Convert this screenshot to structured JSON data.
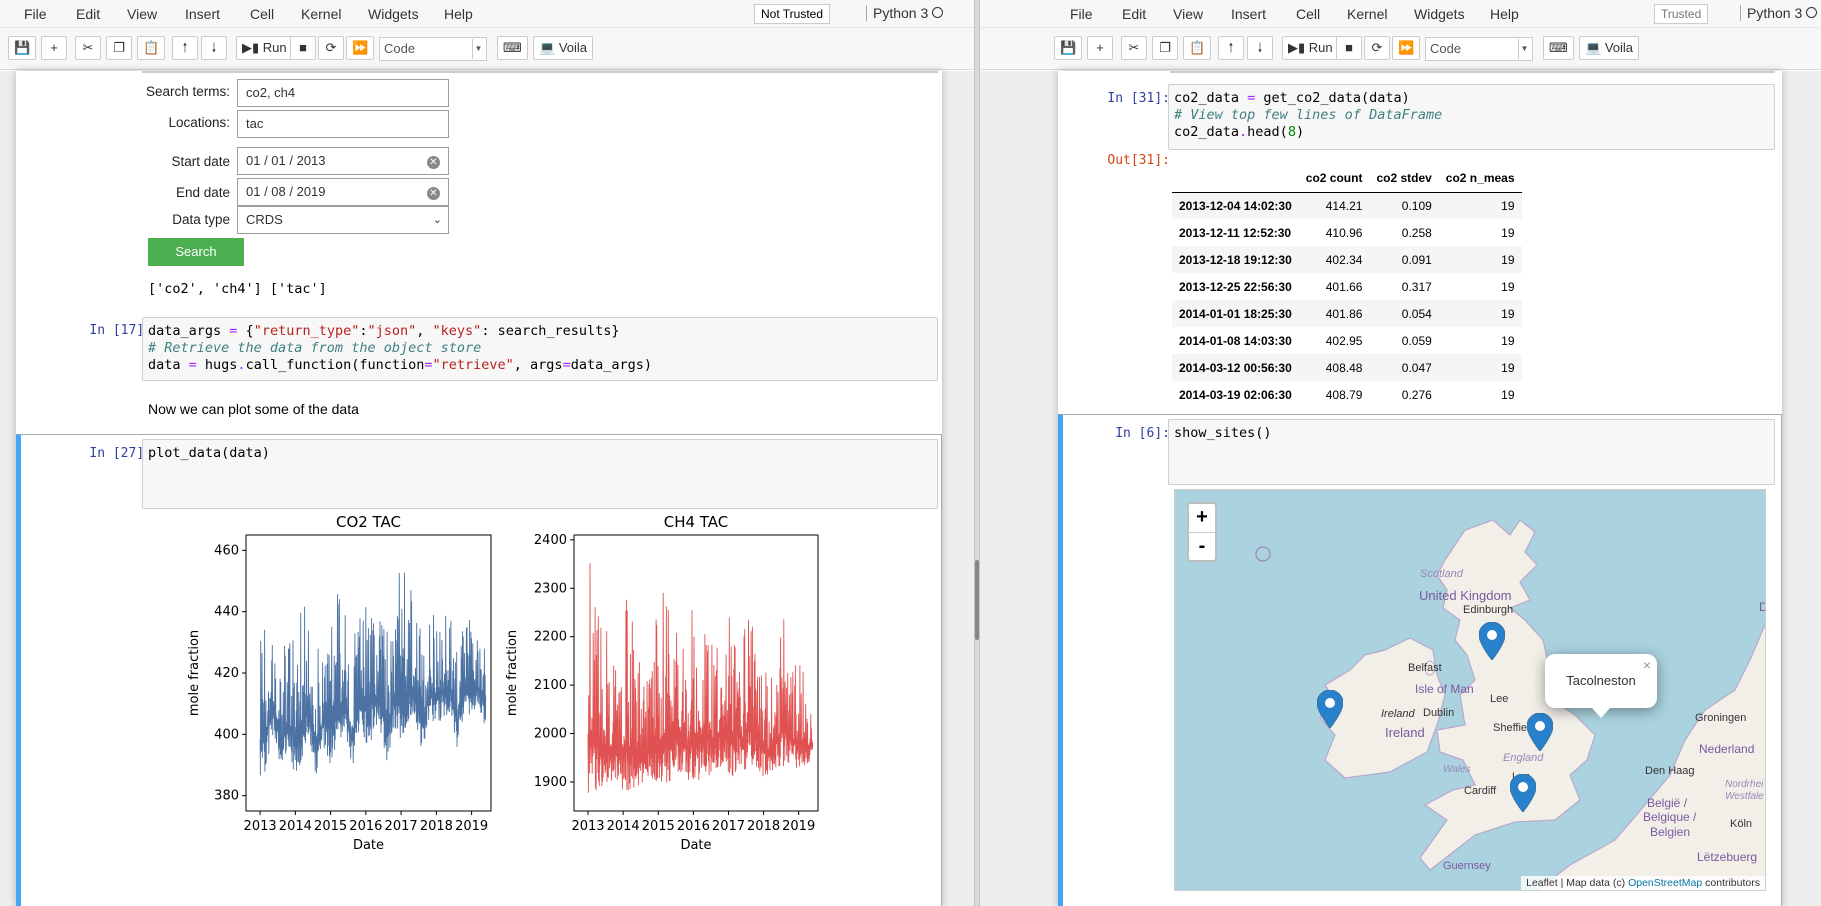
{
  "menus": [
    "File",
    "Edit",
    "View",
    "Insert",
    "Cell",
    "Kernel",
    "Widgets",
    "Help"
  ],
  "left": {
    "trust_label": "Not Trusted",
    "kernel_name": "Python 3",
    "toolbar": {
      "run_label": "Run",
      "cell_type": "Code",
      "voila_label": "Voila"
    },
    "form": {
      "search_terms_label": "Search terms:",
      "search_terms_value": "co2, ch4",
      "locations_label": "Locations:",
      "locations_value": "tac",
      "start_date_label": "Start date",
      "start_date_value": "01 / 01 / 2013",
      "end_date_label": "End date",
      "end_date_value": "01 / 08 / 2019",
      "data_type_label": "Data type",
      "data_type_value": "CRDS",
      "search_button": "Search"
    },
    "search_output": "['co2', 'ch4'] ['tac']",
    "cell17": {
      "prompt": "In [17]:",
      "line1_a": "data_args ",
      "line1_b": "=",
      "line1_c": " {",
      "line1_d": "\"return_type\"",
      "line1_e": ":",
      "line1_f": "\"json\"",
      "line1_g": ", ",
      "line1_h": "\"keys\"",
      "line1_i": ": search_results}",
      "line2": "# Retrieve the data from the object store",
      "line3_a": "data ",
      "line3_b": "=",
      "line3_c": " hugs",
      "line3_d": ".",
      "line3_e": "call_function(function",
      "line3_f": "=",
      "line3_g": "\"retrieve\"",
      "line3_h": ", args",
      "line3_i": "=",
      "line3_j": "data_args)"
    },
    "markdown_text": "Now we can plot some of the data",
    "cell27": {
      "prompt": "In [27]:",
      "code_a": "plot_data",
      "code_b": "(data)"
    }
  },
  "right": {
    "trust_label": "Trusted",
    "kernel_name": "Python 3",
    "toolbar": {
      "run_label": "Run",
      "cell_type": "Code",
      "voila_label": "Voila"
    },
    "cell31": {
      "prompt": "In [31]:",
      "out_prompt": "Out[31]:",
      "line1_a": "co2_data ",
      "line1_b": "=",
      "line1_c": " get_co2_data(data)",
      "line2": "# View top few lines of DataFrame",
      "line3_a": "co2_data",
      "line3_b": ".",
      "line3_c": "head(",
      "line3_d": "8",
      "line3_e": ")"
    },
    "table": {
      "columns": [
        "co2 count",
        "co2 stdev",
        "co2 n_meas"
      ],
      "rows": [
        {
          "index": "2013-12-04 14:02:30",
          "count": "414.21",
          "stdev": "0.109",
          "n_meas": "19"
        },
        {
          "index": "2013-12-11 12:52:30",
          "count": "410.96",
          "stdev": "0.258",
          "n_meas": "19"
        },
        {
          "index": "2013-12-18 19:12:30",
          "count": "402.34",
          "stdev": "0.091",
          "n_meas": "19"
        },
        {
          "index": "2013-12-25 22:56:30",
          "count": "401.66",
          "stdev": "0.317",
          "n_meas": "19"
        },
        {
          "index": "2014-01-01 18:25:30",
          "count": "401.86",
          "stdev": "0.054",
          "n_meas": "19"
        },
        {
          "index": "2014-01-08 14:03:30",
          "count": "402.95",
          "stdev": "0.059",
          "n_meas": "19"
        },
        {
          "index": "2014-03-12 00:56:30",
          "count": "408.48",
          "stdev": "0.047",
          "n_meas": "19"
        },
        {
          "index": "2014-03-19 02:06:30",
          "count": "408.79",
          "stdev": "0.276",
          "n_meas": "19"
        }
      ]
    },
    "cell6": {
      "prompt": "In [6]:",
      "code_a": "show_sites",
      "code_b": "()"
    },
    "map": {
      "zoom_in": "+",
      "zoom_out": "-",
      "popup_text": "Tacolneston",
      "popup_close": "×",
      "labels": {
        "scotland": "Scotland",
        "uk": "United Kingdom",
        "edinburgh": "Edinburgh",
        "belfast": "Belfast",
        "isle_of_man": "Isle of Man",
        "ireland_italic": "Ireland",
        "dublin": "Dublin",
        "ireland": "Ireland",
        "leeds": "Lee",
        "sheffield": "Sheffield",
        "england": "England",
        "wales": "Wales",
        "london": "Lon",
        "cardiff": "Cardiff",
        "guernsey": "Guernsey",
        "groningen": "Groningen",
        "nederland": "Nederland",
        "den_haag": "Den Haag",
        "belgie": "België /",
        "belgique": "Belgique /",
        "belgien": "Belgien",
        "koln": "Köln",
        "nrw1": "Nordrhei",
        "nrw2": "Westfale",
        "letzebuerg": "Lëtzebuerg",
        "d_edge": "D"
      },
      "attribution_a": "Leaflet | Map data (c) ",
      "attribution_link": "OpenStreetMap",
      "attribution_b": " contributors",
      "colors": {
        "water": "#aad3df",
        "land": "#f2efe9",
        "pin": "#2a81cb"
      }
    }
  },
  "chart_data": [
    {
      "type": "line",
      "title": "CO2 TAC",
      "xlabel": "Date",
      "ylabel": "mole fraction",
      "x_ticks": [
        "2013",
        "2014",
        "2015",
        "2016",
        "2017",
        "2018",
        "2019"
      ],
      "y_ticks": [
        380,
        400,
        420,
        440,
        460
      ],
      "ylim": [
        375,
        465
      ],
      "xlim": [
        2012.6,
        2019.55
      ],
      "color": "#4c72a4",
      "series": [
        {
          "x": [
            2013.0,
            2013.2,
            2013.4,
            2013.6,
            2013.8,
            2014.0,
            2014.2,
            2014.4,
            2014.6,
            2014.8,
            2015.0,
            2015.2,
            2015.4,
            2015.6,
            2015.8,
            2016.0,
            2016.2,
            2016.4,
            2016.6,
            2016.8,
            2017.0,
            2017.2,
            2017.4,
            2017.6,
            2017.8,
            2018.0,
            2018.2,
            2018.4,
            2018.6,
            2018.8,
            2019.0,
            2019.2,
            2019.4
          ],
          "upper": [
            445,
            440,
            438,
            430,
            428,
            446,
            444,
            441,
            432,
            432,
            445,
            447,
            440,
            434,
            436,
            461,
            449,
            444,
            438,
            439,
            460,
            450,
            446,
            437,
            438,
            445,
            442,
            439,
            432,
            435,
            441,
            437,
            433
          ],
          "lower": [
            383,
            390,
            400,
            388,
            396,
            385,
            392,
            398,
            385,
            396,
            390,
            396,
            402,
            388,
            400,
            392,
            399,
            402,
            390,
            402,
            398,
            402,
            405,
            393,
            405,
            402,
            405,
            407,
            395,
            408,
            405,
            408,
            402
          ]
        }
      ]
    },
    {
      "type": "line",
      "title": "CH4 TAC",
      "xlabel": "Date",
      "ylabel": "mole fraction",
      "x_ticks": [
        "2013",
        "2014",
        "2015",
        "2016",
        "2017",
        "2018",
        "2019"
      ],
      "y_ticks": [
        1900,
        2000,
        2100,
        2200,
        2300,
        2400
      ],
      "ylim": [
        1840,
        2410
      ],
      "xlim": [
        2012.6,
        2019.55
      ],
      "color": "#e05252",
      "series": [
        {
          "x": [
            2013.0,
            2013.2,
            2013.4,
            2013.6,
            2013.8,
            2014.0,
            2014.2,
            2014.4,
            2014.6,
            2014.8,
            2015.0,
            2015.2,
            2015.4,
            2015.6,
            2015.8,
            2016.0,
            2016.2,
            2016.4,
            2016.6,
            2016.8,
            2017.0,
            2017.2,
            2017.4,
            2017.6,
            2017.8,
            2018.0,
            2018.2,
            2018.4,
            2018.6,
            2018.8,
            2019.0,
            2019.2,
            2019.4
          ],
          "upper": [
            2380,
            2350,
            2250,
            2200,
            2180,
            2310,
            2250,
            2200,
            2120,
            2140,
            2290,
            2320,
            2250,
            2280,
            2160,
            2300,
            2270,
            2250,
            2180,
            2240,
            2250,
            2320,
            2200,
            2280,
            2180,
            2150,
            2110,
            2160,
            2300,
            2140,
            2190,
            2110,
            2080
          ],
          "lower": [
            1870,
            1880,
            1890,
            1900,
            1900,
            1860,
            1880,
            1890,
            1900,
            1910,
            1880,
            1890,
            1900,
            1920,
            1910,
            1890,
            1900,
            1910,
            1920,
            1930,
            1900,
            1910,
            1920,
            1930,
            1930,
            1910,
            1920,
            1930,
            1930,
            1940,
            1920,
            1930,
            1940
          ]
        }
      ]
    }
  ]
}
